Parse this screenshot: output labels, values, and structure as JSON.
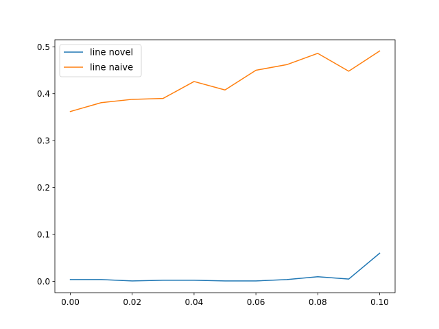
{
  "chart_data": {
    "type": "line",
    "title": "",
    "xlabel": "",
    "ylabel": "",
    "x": [
      0.0,
      0.01,
      0.02,
      0.03,
      0.04,
      0.05,
      0.06,
      0.07,
      0.08,
      0.09,
      0.1
    ],
    "series": [
      {
        "name": "line novel",
        "color": "#1f77b4",
        "values": [
          0.004,
          0.004,
          0.001,
          0.0025,
          0.0025,
          0.001,
          0.001,
          0.004,
          0.01,
          0.005,
          0.06
        ]
      },
      {
        "name": "line naive",
        "color": "#ff7f0e",
        "values": [
          0.362,
          0.381,
          0.388,
          0.39,
          0.426,
          0.408,
          0.45,
          0.462,
          0.486,
          0.448,
          0.491
        ]
      }
    ],
    "xlim": [
      -0.005,
      0.105
    ],
    "ylim": [
      -0.024,
      0.515
    ],
    "xticks": [
      0.0,
      0.02,
      0.04,
      0.06,
      0.08,
      0.1
    ],
    "xtick_labels": [
      "0.00",
      "0.02",
      "0.04",
      "0.06",
      "0.08",
      "0.10"
    ],
    "yticks": [
      0.0,
      0.1,
      0.2,
      0.3,
      0.4,
      0.5
    ],
    "ytick_labels": [
      "0.0",
      "0.1",
      "0.2",
      "0.3",
      "0.4",
      "0.5"
    ],
    "grid": false,
    "legend_position": "upper-left"
  }
}
